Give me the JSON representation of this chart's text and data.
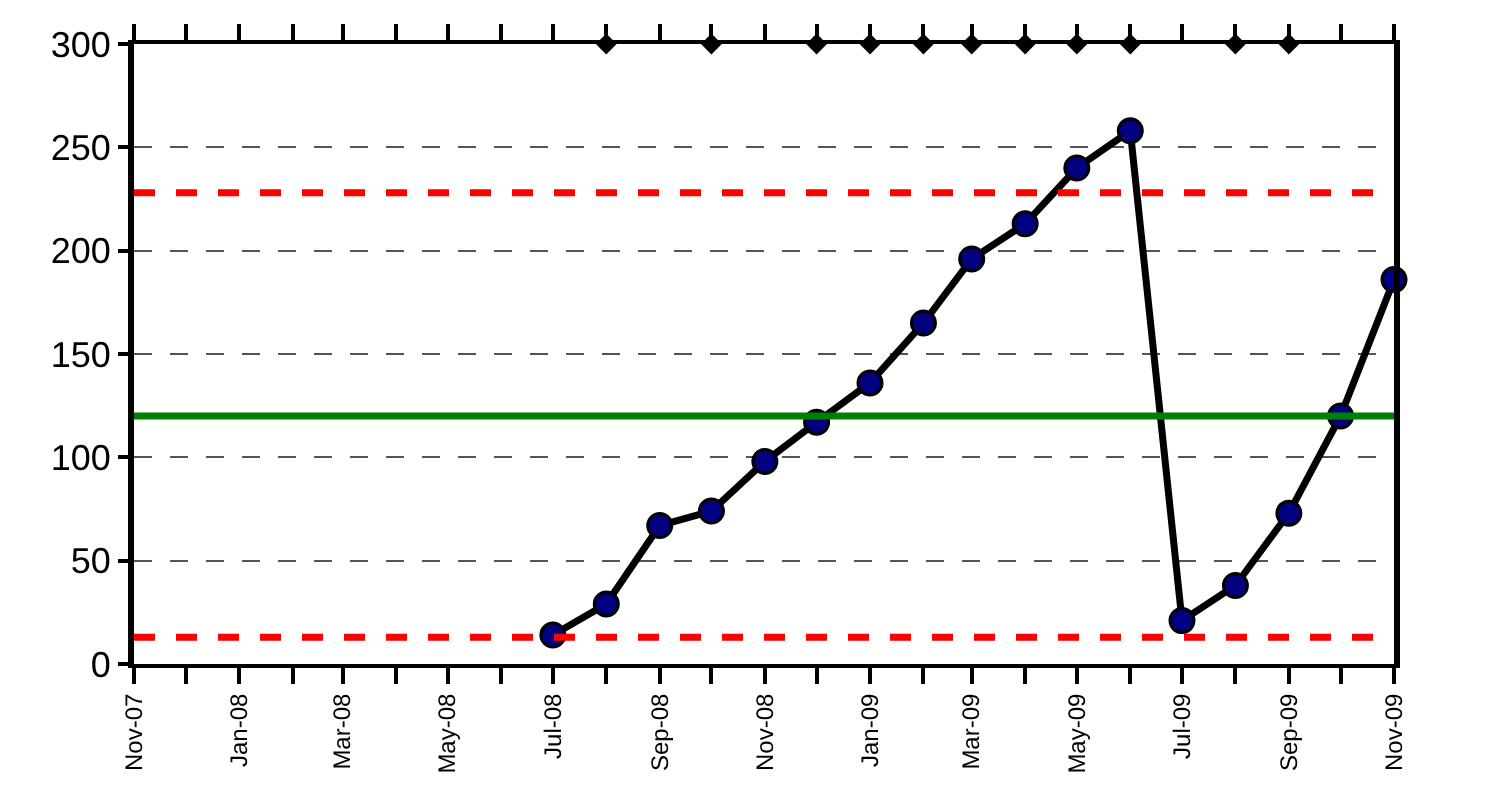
{
  "chart_data": {
    "type": "line",
    "xlim": [
      "2007-11",
      "2009-11"
    ],
    "xticks": [
      {
        "value": "2007-11",
        "label": "Nov-07"
      },
      {
        "value": "2007-12",
        "label": null
      },
      {
        "value": "2008-01",
        "label": "Jan-08"
      },
      {
        "value": "2008-02",
        "label": null
      },
      {
        "value": "2008-03",
        "label": "Mar-08"
      },
      {
        "value": "2008-04",
        "label": null
      },
      {
        "value": "2008-05",
        "label": "May-08"
      },
      {
        "value": "2008-06",
        "label": null
      },
      {
        "value": "2008-07",
        "label": "Jul-08"
      },
      {
        "value": "2008-08",
        "label": null
      },
      {
        "value": "2008-09",
        "label": "Sep-08"
      },
      {
        "value": "2008-10",
        "label": null
      },
      {
        "value": "2008-11",
        "label": "Nov-08"
      },
      {
        "value": "2008-12",
        "label": null
      },
      {
        "value": "2009-01",
        "label": "Jan-09"
      },
      {
        "value": "2009-02",
        "label": null
      },
      {
        "value": "2009-03",
        "label": "Mar-09"
      },
      {
        "value": "2009-04",
        "label": null
      },
      {
        "value": "2009-05",
        "label": "May-09"
      },
      {
        "value": "2009-06",
        "label": null
      },
      {
        "value": "2009-07",
        "label": "Jul-09"
      },
      {
        "value": "2009-08",
        "label": null
      },
      {
        "value": "2009-09",
        "label": "Sep-09"
      },
      {
        "value": "2009-10",
        "label": null
      },
      {
        "value": "2009-11",
        "label": "Nov-09"
      }
    ],
    "ylim": [
      0,
      300
    ],
    "yticks": [
      0,
      50,
      100,
      150,
      200,
      250,
      300
    ],
    "grid": "y",
    "marker": "circle",
    "line_style": "solid",
    "series": [
      {
        "color": "#000080",
        "x": [
          "2008-07",
          "2008-08",
          "2008-09",
          "2008-10",
          "2008-11",
          "2008-12",
          "2009-01",
          "2009-02",
          "2009-03",
          "2009-04",
          "2009-05",
          "2009-06",
          "2009-07",
          "2009-08",
          "2009-09",
          "2009-10",
          "2009-11"
        ],
        "values": [
          14,
          29,
          67,
          74,
          98,
          117,
          136,
          165,
          196,
          213,
          240,
          258,
          21,
          38,
          73,
          120,
          186
        ]
      },
      {
        "type": "scatter",
        "marker": "diamond",
        "color": "#000000",
        "x": [
          "2008-08",
          "2008-10",
          "2008-12",
          "2009-01",
          "2009-02",
          "2009-03",
          "2009-04",
          "2009-05",
          "2009-06",
          "2009-08",
          "2009-09"
        ],
        "values": [
          300,
          300,
          300,
          300,
          300,
          300,
          300,
          300,
          300,
          300,
          300
        ]
      }
    ],
    "ref_lines": [
      {
        "axis": "y",
        "value": 228,
        "color": "#ff0000",
        "line_style": "dashed"
      },
      {
        "axis": "y",
        "value": 120,
        "color": "#008000",
        "line_style": "solid"
      },
      {
        "axis": "y",
        "value": 13,
        "color": "#ff0000",
        "line_style": "dashed"
      }
    ]
  }
}
